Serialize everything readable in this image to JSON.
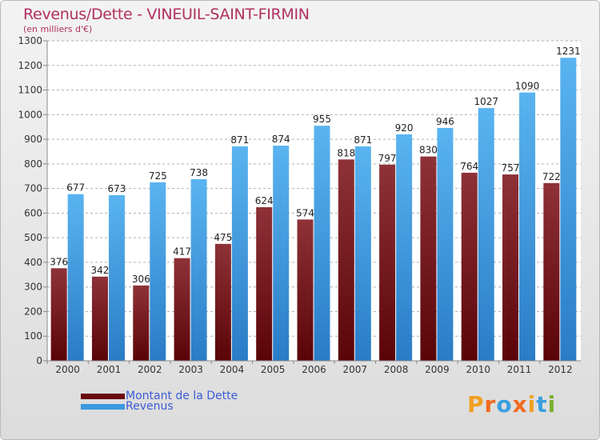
{
  "title": "Revenus/Dette - VINEUIL-SAINT-FIRMIN",
  "subtitle": "(en milliers d'€)",
  "colors": {
    "title": "#b03060",
    "dette": "#7a1e24",
    "revenus": "#3a9ae0",
    "legend_text": "#3b5bd6"
  },
  "legend": [
    {
      "label": "Montant de la Dette",
      "color": "#6a0c10"
    },
    {
      "label": "Revenus",
      "color": "#3a9ae0"
    }
  ],
  "logo": {
    "text": "Proxiti"
  },
  "chart_data": {
    "type": "bar",
    "categories": [
      "2000",
      "2001",
      "2002",
      "2003",
      "2004",
      "2005",
      "2006",
      "2007",
      "2008",
      "2009",
      "2010",
      "2011",
      "2012"
    ],
    "series": [
      {
        "name": "Montant de la Dette",
        "values": [
          376,
          342,
          306,
          417,
          475,
          624,
          574,
          818,
          797,
          830,
          764,
          757,
          722
        ]
      },
      {
        "name": "Revenus",
        "values": [
          677,
          673,
          725,
          738,
          871,
          874,
          955,
          871,
          920,
          946,
          1027,
          1090,
          1231
        ]
      }
    ],
    "ylim": [
      0,
      1300
    ],
    "yticks": [
      0,
      100,
      200,
      300,
      400,
      500,
      600,
      700,
      800,
      900,
      1000,
      1100,
      1200,
      1300
    ],
    "grid": true,
    "legend_position": "bottom-left"
  }
}
